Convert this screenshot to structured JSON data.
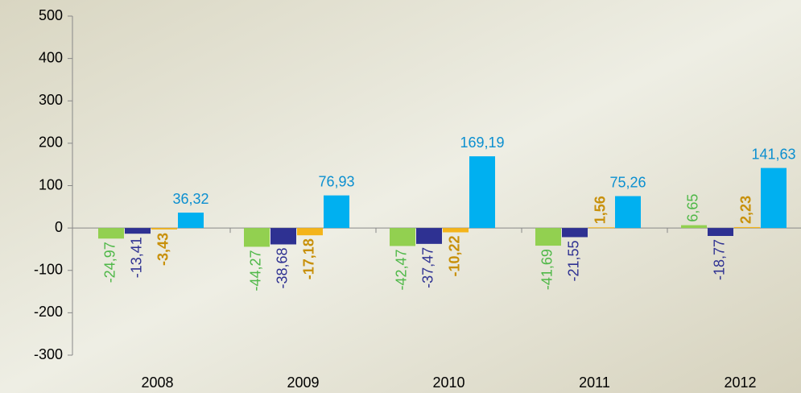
{
  "chart_data": {
    "type": "bar",
    "categories": [
      "2008",
      "2009",
      "2010",
      "2011",
      "2012"
    ],
    "series": [
      {
        "color": "#92d050",
        "label_color": "#4fb848",
        "bold": false,
        "values": [
          -24.97,
          -44.27,
          -42.47,
          -41.69,
          6.65
        ],
        "value_labels": [
          "-24,97",
          "-44,27",
          "-42,47",
          "-41,69",
          "6,65"
        ]
      },
      {
        "color": "#2e3192",
        "label_color": "#2e3192",
        "bold": false,
        "values": [
          -13.41,
          -38.68,
          -37.47,
          -21.55,
          -18.77
        ],
        "value_labels": [
          "-13,41",
          "-38,68",
          "-37,47",
          "-21,55",
          "-18,77"
        ]
      },
      {
        "color": "#f4b41a",
        "label_color": "#c8900a",
        "bold": true,
        "values": [
          -3.43,
          -17.18,
          -10.22,
          1.56,
          2.23
        ],
        "value_labels": [
          "-3,43",
          "-17,18",
          "-10,22",
          "1,56",
          "2,23"
        ]
      },
      {
        "color": "#00b0f0",
        "label_color": "#0b8fd0",
        "bold": false,
        "values": [
          36.32,
          76.93,
          169.19,
          75.26,
          141.63
        ],
        "value_labels": [
          "36,32",
          "76,93",
          "169,19",
          "75,26",
          "141,63"
        ]
      }
    ],
    "ylim": [
      -300,
      500
    ],
    "yticks": [
      -300,
      -200,
      -100,
      0,
      100,
      200,
      300,
      400,
      500
    ]
  }
}
